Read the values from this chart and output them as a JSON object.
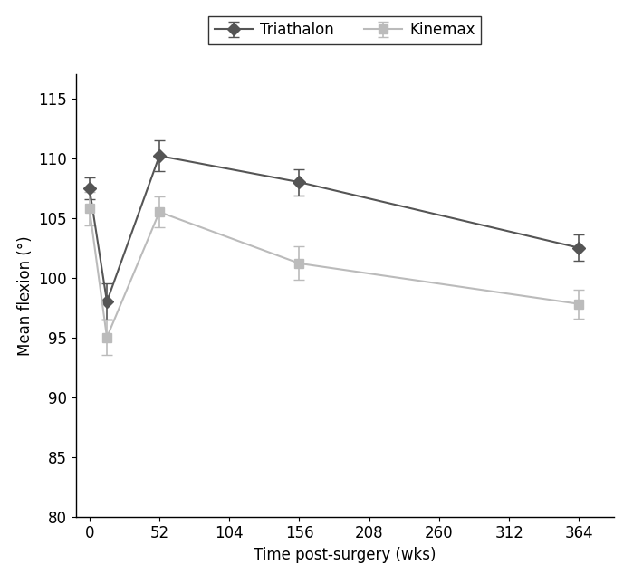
{
  "title": "",
  "xlabel": "Time post-surgery (wks)",
  "ylabel": "Mean flexion (°)",
  "xlim": [
    -10,
    390
  ],
  "ylim": [
    80,
    117
  ],
  "yticks": [
    80,
    85,
    90,
    95,
    100,
    105,
    110,
    115
  ],
  "xticks": [
    0,
    52,
    104,
    156,
    208,
    260,
    312,
    364
  ],
  "triathalon": {
    "label": "Triathalon",
    "x": [
      0,
      13,
      52,
      156,
      364
    ],
    "y": [
      107.5,
      98.0,
      110.2,
      108.0,
      102.5
    ],
    "yerr": [
      0.9,
      1.5,
      1.3,
      1.1,
      1.1
    ],
    "color": "#555555",
    "marker": "D",
    "markersize": 7
  },
  "kinemax": {
    "label": "Kinemax",
    "x": [
      0,
      13,
      52,
      156,
      364
    ],
    "y": [
      105.8,
      95.0,
      105.5,
      101.2,
      97.8
    ],
    "yerr": [
      1.4,
      1.5,
      1.3,
      1.4,
      1.2
    ],
    "color": "#bbbbbb",
    "marker": "s",
    "markersize": 7
  },
  "legend_box_color": "#000000",
  "background_color": "#ffffff",
  "font_size": 12
}
